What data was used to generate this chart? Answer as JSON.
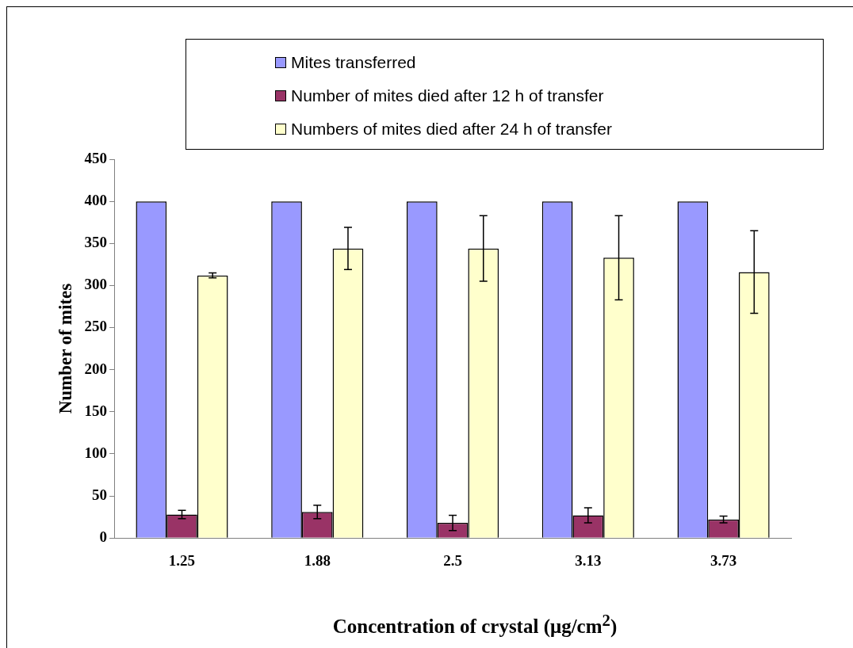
{
  "chart_data": {
    "type": "bar",
    "xlabel": "Concentration of crystal (μg/cm$^{2}$)",
    "ylabel": "Number of mites",
    "categories": [
      "1.25",
      "1.88",
      "2.5",
      "3.13",
      "3.73"
    ],
    "series": [
      {
        "name": "Mites transferred",
        "color": "#9999ff",
        "values": [
          400,
          400,
          400,
          400,
          400
        ]
      },
      {
        "name": "Number of mites died after 12 h of transfer",
        "color": "#993366",
        "values": [
          28,
          31,
          18,
          27,
          22
        ],
        "errors": [
          5,
          8,
          9,
          9,
          4
        ]
      },
      {
        "name": "Numbers of mites died after 24 h of transfer",
        "color": "#ffffcc",
        "values": [
          312,
          344,
          344,
          333,
          316
        ],
        "errors": [
          3,
          25,
          39,
          50,
          49
        ]
      }
    ],
    "ylim": [
      0,
      450
    ],
    "yticks": [
      0,
      50,
      100,
      150,
      200,
      250,
      300,
      350,
      400,
      450
    ],
    "grid": false,
    "legend": "top"
  }
}
